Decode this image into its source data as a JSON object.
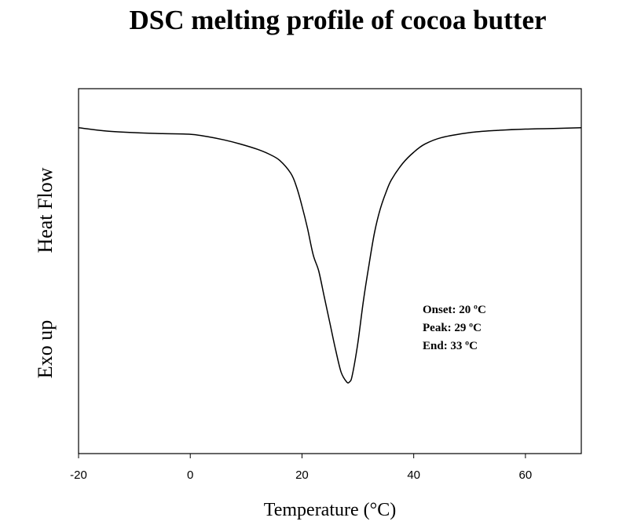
{
  "chart_data": {
    "type": "line",
    "title": "DSC melting profile of cocoa butter",
    "xlabel": "Temperature (°C)",
    "ylabel_parts": [
      "Exo up",
      "Heat Flow"
    ],
    "xlim": [
      -20,
      70
    ],
    "ylim": [
      -1.0,
      0.12
    ],
    "xticks": [
      -20,
      0,
      20,
      40,
      60
    ],
    "x_tick_labels": [
      "-20",
      "0",
      "20",
      "40",
      "60"
    ],
    "grid": false,
    "annotations": [
      "Onset: 20 ºC",
      "Peak: 29 ºC",
      "End: 33 ºC"
    ],
    "series": [
      {
        "x": [
          -20,
          -15,
          -10,
          -5,
          0,
          3,
          6,
          9,
          12,
          14,
          16,
          18,
          19,
          20,
          21,
          22,
          23,
          24,
          25,
          26,
          27,
          28,
          28.5,
          29,
          30,
          31,
          32,
          33,
          34,
          35,
          36,
          38,
          40,
          42,
          45,
          50,
          55,
          60,
          65,
          70
        ],
        "y": [
          0.0,
          -0.01,
          -0.015,
          -0.018,
          -0.02,
          -0.027,
          -0.037,
          -0.05,
          -0.066,
          -0.08,
          -0.1,
          -0.14,
          -0.18,
          -0.24,
          -0.31,
          -0.39,
          -0.44,
          -0.52,
          -0.6,
          -0.68,
          -0.75,
          -0.78,
          -0.78,
          -0.76,
          -0.66,
          -0.53,
          -0.42,
          -0.32,
          -0.25,
          -0.2,
          -0.16,
          -0.11,
          -0.075,
          -0.05,
          -0.03,
          -0.015,
          -0.008,
          -0.004,
          -0.002,
          0.0
        ]
      }
    ]
  }
}
